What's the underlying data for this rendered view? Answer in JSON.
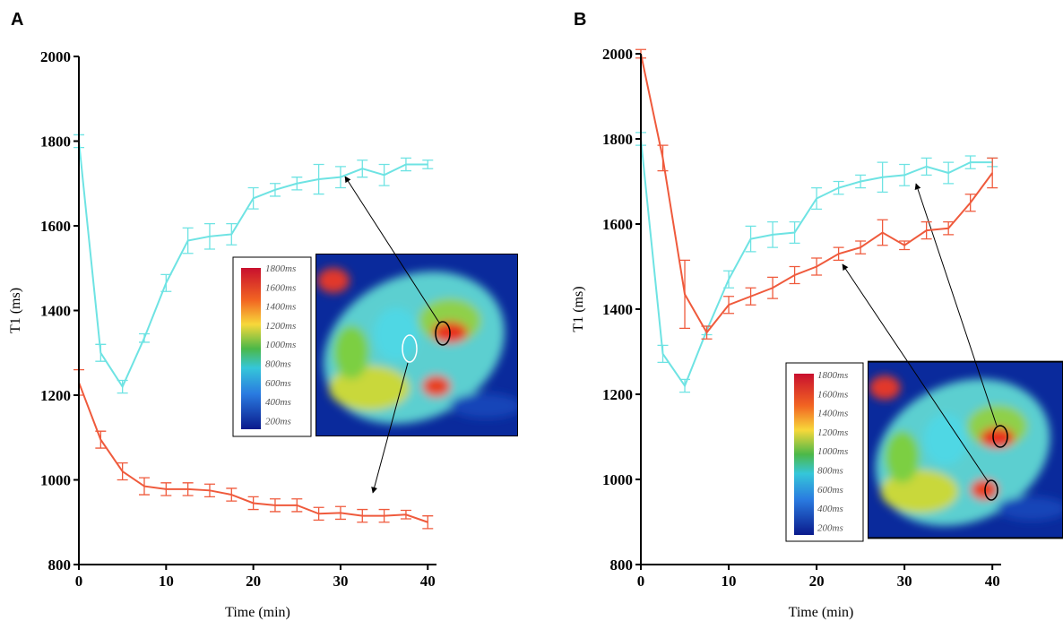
{
  "chart_data": [
    {
      "type": "line",
      "panel_label": "A",
      "xlabel": "Time (min)",
      "ylabel": "T1 (ms)",
      "x": [
        0,
        2.5,
        5,
        7.5,
        10,
        12.5,
        15,
        17.5,
        20,
        22.5,
        25,
        27.5,
        30,
        32.5,
        35,
        37.5,
        40
      ],
      "xlim": [
        0,
        41
      ],
      "ylim": [
        800,
        2000
      ],
      "xticks": [
        0,
        10,
        20,
        30,
        40
      ],
      "yticks": [
        800,
        1000,
        1200,
        1400,
        1600,
        1800,
        2000
      ],
      "series": [
        {
          "color": "#6ee3e3",
          "values": [
            1800,
            1300,
            1220,
            1335,
            1465,
            1565,
            1575,
            1580,
            1665,
            1685,
            1700,
            1710,
            1715,
            1735,
            1720,
            1745,
            1745
          ],
          "errors": [
            15,
            20,
            15,
            10,
            20,
            30,
            30,
            25,
            25,
            15,
            15,
            35,
            25,
            20,
            25,
            15,
            10
          ]
        },
        {
          "color": "#ef5a3c",
          "values": [
            1230,
            1095,
            1020,
            985,
            978,
            978,
            975,
            965,
            945,
            940,
            940,
            920,
            922,
            915,
            915,
            918,
            900
          ],
          "errors": [
            30,
            20,
            20,
            20,
            15,
            15,
            15,
            15,
            15,
            15,
            15,
            15,
            15,
            15,
            15,
            10,
            15
          ]
        }
      ],
      "colorbar_labels": [
        "1800ms",
        "1600ms",
        "1400ms",
        "1200ms",
        "1000ms",
        "800ms",
        "600ms",
        "400ms",
        "200ms"
      ]
    },
    {
      "type": "line",
      "panel_label": "B",
      "xlabel": "Time (min)",
      "ylabel": "T1 (ms)",
      "x": [
        0,
        2.5,
        5,
        7.5,
        10,
        12.5,
        15,
        17.5,
        20,
        22.5,
        25,
        27.5,
        30,
        32.5,
        35,
        37.5,
        40
      ],
      "xlim": [
        0,
        41
      ],
      "ylim": [
        800,
        2000
      ],
      "xticks": [
        0,
        10,
        20,
        30,
        40
      ],
      "yticks": [
        800,
        1000,
        1200,
        1400,
        1600,
        1800,
        2000
      ],
      "series": [
        {
          "color": "#6ee3e3",
          "values": [
            1800,
            1295,
            1220,
            1350,
            1470,
            1565,
            1575,
            1580,
            1660,
            1685,
            1700,
            1710,
            1715,
            1735,
            1720,
            1745,
            1745
          ],
          "errors": [
            15,
            20,
            15,
            10,
            20,
            30,
            30,
            25,
            25,
            15,
            15,
            35,
            25,
            20,
            25,
            15,
            10
          ]
        },
        {
          "color": "#ef5a3c",
          "values": [
            2000,
            1755,
            1435,
            1345,
            1410,
            1430,
            1450,
            1480,
            1500,
            1530,
            1545,
            1580,
            1550,
            1585,
            1590,
            1650,
            1720
          ],
          "errors": [
            10,
            30,
            80,
            15,
            20,
            20,
            25,
            20,
            20,
            15,
            15,
            30,
            10,
            20,
            15,
            20,
            35
          ]
        }
      ],
      "colorbar_labels": [
        "1800ms",
        "1600ms",
        "1400ms",
        "1200ms",
        "1000ms",
        "800ms",
        "600ms",
        "400ms",
        "200ms"
      ]
    }
  ]
}
